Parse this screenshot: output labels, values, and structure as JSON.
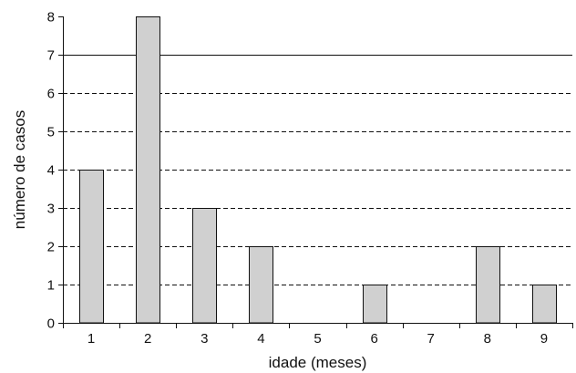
{
  "chart_data": {
    "type": "bar",
    "categories": [
      "1",
      "2",
      "3",
      "4",
      "5",
      "6",
      "7",
      "8",
      "9"
    ],
    "values": [
      4,
      8,
      3,
      2,
      0,
      1,
      0,
      2,
      1
    ],
    "xlabel": "idade (meses)",
    "ylabel": "número de casos",
    "ylim": [
      0,
      8
    ],
    "yticks": [
      "0",
      "1",
      "2",
      "3",
      "4",
      "5",
      "6",
      "7",
      "8"
    ],
    "grid": "dashed horizontal; solid line at 7",
    "bar_color": "#d0d0d0",
    "bar_edge_color": "#111111"
  }
}
